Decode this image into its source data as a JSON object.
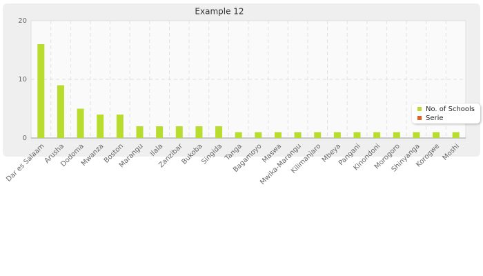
{
  "chart_data": {
    "type": "bar",
    "title": "Example 12",
    "categories": [
      "Dar es Salaam",
      "Arusha",
      "Dodoma",
      "Mwanza",
      "Boston",
      "Marangu",
      "Ilala",
      "Zanzibar",
      "Bukoba",
      "Singida",
      "Tanga",
      "Bagamoyo",
      "Maswa",
      "Mwika-Marangu",
      "Kilimanjaro",
      "Mbeya",
      "Pangani",
      "Kinondoni",
      "Morogoro",
      "Shinyanga",
      "Korogwe",
      "Moshi"
    ],
    "series": [
      {
        "name": "No. of Schools",
        "color": "#b8dd2e",
        "values": [
          16,
          9,
          5,
          4,
          4,
          2,
          2,
          2,
          2,
          2,
          1,
          1,
          1,
          1,
          1,
          1,
          1,
          1,
          1,
          1,
          1,
          1
        ]
      },
      {
        "name": "Serie",
        "color": "#e0602a",
        "values": [
          null,
          null,
          null,
          null,
          null,
          null,
          null,
          null,
          null,
          null,
          null,
          null,
          null,
          null,
          null,
          null,
          null,
          null,
          null,
          null,
          null,
          null
        ]
      }
    ],
    "ylim": [
      0,
      20
    ],
    "yticks": [
      0,
      10,
      20
    ],
    "grid": true,
    "legend": "right"
  }
}
